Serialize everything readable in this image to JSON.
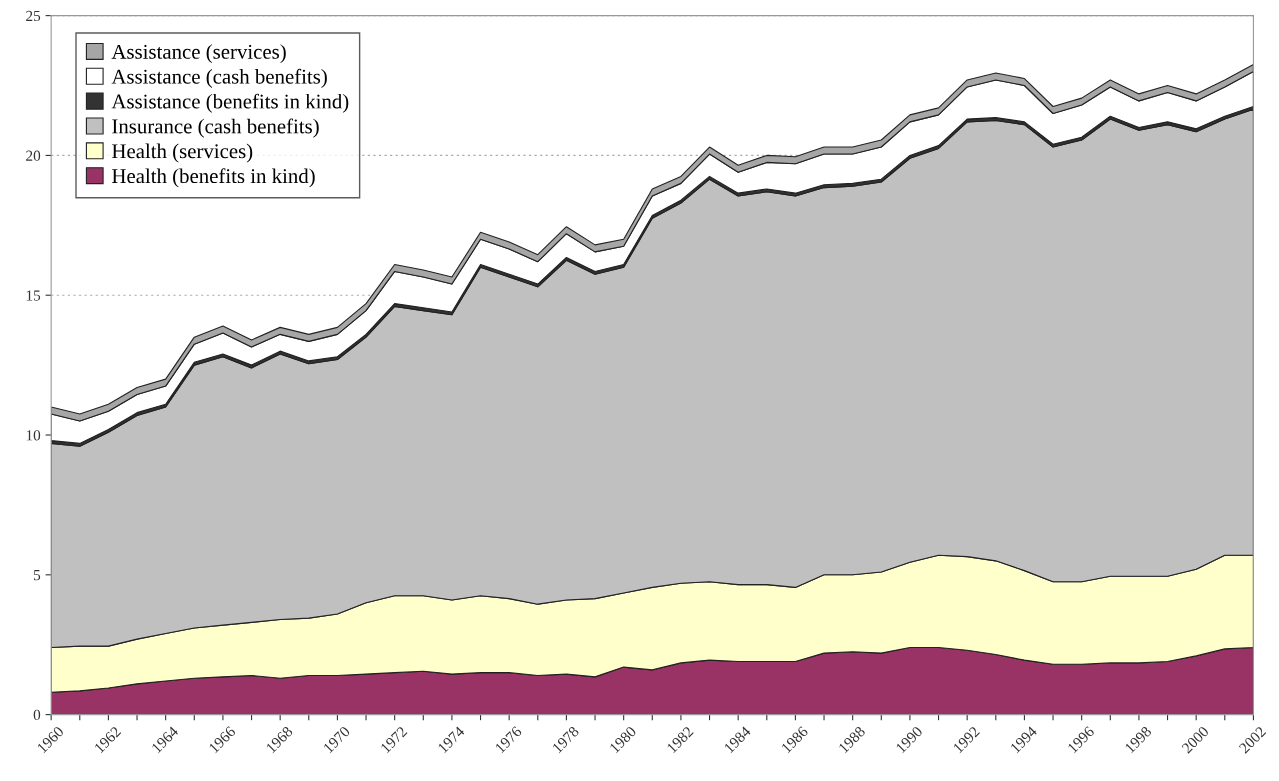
{
  "chart_data": {
    "type": "area",
    "stacked": true,
    "x": [
      1960,
      1961,
      1962,
      1963,
      1964,
      1965,
      1966,
      1967,
      1968,
      1969,
      1970,
      1971,
      1972,
      1973,
      1974,
      1975,
      1976,
      1977,
      1978,
      1979,
      1980,
      1981,
      1982,
      1983,
      1984,
      1985,
      1986,
      1987,
      1988,
      1989,
      1990,
      1991,
      1992,
      1993,
      1994,
      1995,
      1996,
      1997,
      1998,
      1999,
      2000,
      2001,
      2002
    ],
    "series": [
      {
        "name": "Health (benefits in kind)",
        "color": "#993366",
        "values": [
          0.8,
          0.85,
          0.95,
          1.1,
          1.2,
          1.3,
          1.35,
          1.4,
          1.3,
          1.4,
          1.4,
          1.45,
          1.5,
          1.55,
          1.45,
          1.5,
          1.5,
          1.4,
          1.45,
          1.35,
          1.7,
          1.6,
          1.85,
          1.95,
          1.9,
          1.9,
          1.9,
          2.2,
          2.25,
          2.2,
          2.4,
          2.4,
          2.3,
          2.15,
          1.95,
          1.8,
          1.8,
          1.85,
          1.85,
          1.9,
          2.1,
          2.35,
          2.4
        ]
      },
      {
        "name": "Health (services)",
        "color": "#ffffcc",
        "values": [
          1.6,
          1.6,
          1.5,
          1.6,
          1.7,
          1.8,
          1.85,
          1.9,
          2.1,
          2.05,
          2.2,
          2.55,
          2.75,
          2.7,
          2.65,
          2.75,
          2.65,
          2.55,
          2.65,
          2.8,
          2.65,
          2.95,
          2.85,
          2.8,
          2.75,
          2.75,
          2.65,
          2.8,
          2.75,
          2.9,
          3.05,
          3.3,
          3.35,
          3.35,
          3.2,
          2.95,
          2.95,
          3.1,
          3.1,
          3.05,
          3.1,
          3.35,
          3.3
        ]
      },
      {
        "name": "Insurance (cash benefits)",
        "color": "#c0c0c0",
        "values": [
          7.3,
          7.15,
          7.65,
          8.0,
          8.1,
          9.4,
          9.6,
          9.1,
          9.5,
          9.1,
          9.1,
          9.5,
          10.35,
          10.2,
          10.2,
          11.75,
          11.5,
          11.35,
          12.15,
          11.6,
          11.65,
          13.2,
          13.6,
          14.4,
          13.9,
          14.05,
          14.0,
          13.85,
          13.9,
          13.95,
          14.45,
          14.55,
          15.55,
          15.75,
          15.95,
          15.55,
          15.8,
          16.35,
          15.95,
          16.15,
          15.65,
          15.6,
          15.95
        ]
      },
      {
        "name": "Assistance (benefits in kind)",
        "color": "#333333",
        "values": [
          0.1,
          0.1,
          0.1,
          0.1,
          0.1,
          0.1,
          0.1,
          0.1,
          0.1,
          0.1,
          0.1,
          0.1,
          0.1,
          0.1,
          0.1,
          0.1,
          0.1,
          0.1,
          0.1,
          0.1,
          0.1,
          0.1,
          0.1,
          0.1,
          0.1,
          0.1,
          0.1,
          0.1,
          0.1,
          0.1,
          0.1,
          0.1,
          0.1,
          0.1,
          0.1,
          0.1,
          0.1,
          0.1,
          0.1,
          0.1,
          0.1,
          0.1,
          0.1
        ]
      },
      {
        "name": "Assistance (cash benefits)",
        "color": "#ffffff",
        "values": [
          0.95,
          0.8,
          0.65,
          0.65,
          0.65,
          0.65,
          0.75,
          0.65,
          0.6,
          0.7,
          0.8,
          0.85,
          1.15,
          1.1,
          1.0,
          0.9,
          0.9,
          0.8,
          0.85,
          0.7,
          0.65,
          0.7,
          0.6,
          0.8,
          0.75,
          0.95,
          1.05,
          1.1,
          1.05,
          1.15,
          1.2,
          1.1,
          1.15,
          1.35,
          1.3,
          1.1,
          1.15,
          1.05,
          0.95,
          1.05,
          1.0,
          1.05,
          1.25
        ]
      },
      {
        "name": "Assistance (services)",
        "color": "#a6a6a6",
        "values": [
          0.25,
          0.25,
          0.25,
          0.25,
          0.25,
          0.25,
          0.25,
          0.25,
          0.25,
          0.25,
          0.25,
          0.25,
          0.25,
          0.25,
          0.25,
          0.25,
          0.25,
          0.25,
          0.25,
          0.25,
          0.25,
          0.25,
          0.25,
          0.25,
          0.25,
          0.25,
          0.25,
          0.25,
          0.25,
          0.25,
          0.25,
          0.25,
          0.25,
          0.25,
          0.25,
          0.25,
          0.25,
          0.25,
          0.25,
          0.25,
          0.25,
          0.25,
          0.25
        ]
      }
    ],
    "xlim": [
      1960,
      2002
    ],
    "xticks": [
      1960,
      {
        "value": 1961,
        "label": null
      },
      1962,
      {
        "value": 1963,
        "label": null
      },
      1964,
      {
        "value": 1965,
        "label": null
      },
      1966,
      {
        "value": 1967,
        "label": null
      },
      1968,
      {
        "value": 1969,
        "label": null
      },
      1970,
      {
        "value": 1971,
        "label": null
      },
      1972,
      {
        "value": 1973,
        "label": null
      },
      1974,
      {
        "value": 1975,
        "label": null
      },
      1976,
      {
        "value": 1977,
        "label": null
      },
      1978,
      {
        "value": 1979,
        "label": null
      },
      1980,
      {
        "value": 1981,
        "label": null
      },
      1982,
      {
        "value": 1983,
        "label": null
      },
      1984,
      {
        "value": 1985,
        "label": null
      },
      1986,
      {
        "value": 1987,
        "label": null
      },
      1988,
      {
        "value": 1989,
        "label": null
      },
      1990,
      {
        "value": 1991,
        "label": null
      },
      1992,
      {
        "value": 1993,
        "label": null
      },
      1994,
      {
        "value": 1995,
        "label": null
      },
      1996,
      {
        "value": 1997,
        "label": null
      },
      1998,
      {
        "value": 1999,
        "label": null
      },
      2000,
      {
        "value": 2001,
        "label": null
      },
      2002
    ],
    "ylim": [
      0,
      25
    ],
    "yticks": [
      0,
      5,
      10,
      15,
      20,
      25
    ],
    "grid": "y",
    "legend": "top left"
  }
}
